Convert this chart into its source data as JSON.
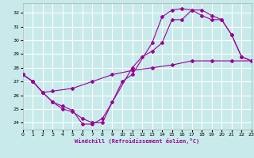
{
  "xlabel": "Windchill (Refroidissement éolien,°C)",
  "bg_color": "#c8eaea",
  "grid_color": "#ffffff",
  "line_color": "#990099",
  "xlim": [
    0,
    23
  ],
  "ylim": [
    23.5,
    32.7
  ],
  "yticks": [
    24,
    25,
    26,
    27,
    28,
    29,
    30,
    31,
    32
  ],
  "xticks": [
    0,
    1,
    2,
    3,
    4,
    5,
    6,
    7,
    8,
    9,
    10,
    11,
    12,
    13,
    14,
    15,
    16,
    17,
    18,
    19,
    20,
    21,
    22,
    23
  ],
  "series1_x": [
    0,
    1,
    2,
    3,
    4,
    5,
    6,
    7,
    8,
    10,
    11,
    13,
    14,
    15,
    16,
    17,
    18,
    19,
    20,
    21,
    22,
    23
  ],
  "series1_y": [
    27.5,
    27.0,
    26.2,
    25.5,
    25.0,
    24.8,
    24.3,
    24.0,
    24.0,
    27.0,
    27.5,
    29.8,
    31.7,
    32.2,
    32.3,
    32.2,
    32.2,
    31.8,
    31.5,
    30.4,
    28.8,
    28.5
  ],
  "series2_x": [
    0,
    1,
    2,
    3,
    4,
    5,
    6,
    7,
    8,
    9,
    11,
    12,
    13,
    14,
    15,
    16,
    17,
    18,
    19,
    20,
    21,
    22,
    23
  ],
  "series2_y": [
    27.5,
    27.0,
    26.2,
    25.5,
    25.2,
    24.9,
    23.9,
    23.9,
    24.3,
    25.5,
    28.0,
    28.8,
    29.2,
    29.8,
    31.5,
    31.5,
    32.2,
    31.8,
    31.5,
    31.5,
    30.4,
    28.8,
    28.5
  ],
  "series3_x": [
    0,
    1,
    2,
    3,
    5,
    7,
    9,
    11,
    13,
    15,
    17,
    19,
    21,
    23
  ],
  "series3_y": [
    27.5,
    27.0,
    26.2,
    26.3,
    26.5,
    27.0,
    27.5,
    27.8,
    28.0,
    28.2,
    28.5,
    28.5,
    28.5,
    28.5
  ]
}
